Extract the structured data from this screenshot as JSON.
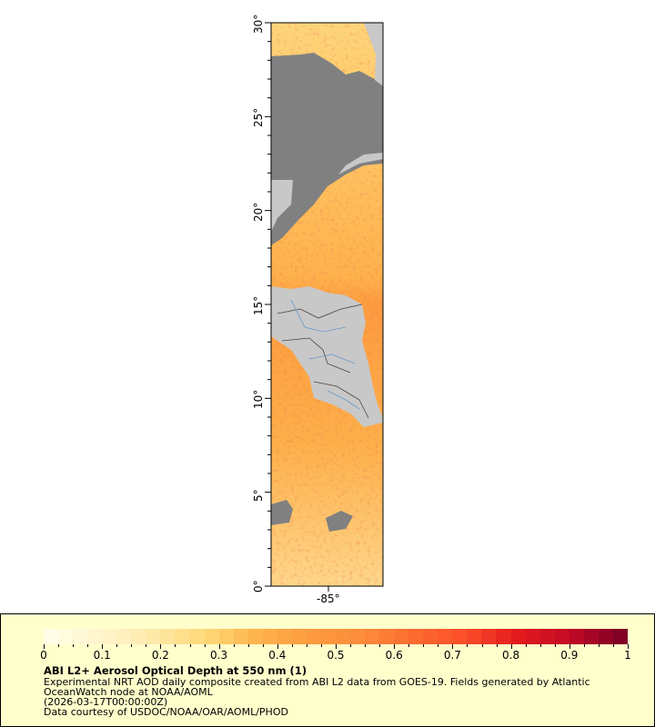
{
  "map": {
    "lat_labels": [
      "30°",
      "25°",
      "20°",
      "15°",
      "10°",
      "5°",
      "0°"
    ],
    "lon_labels": [
      "-85°"
    ],
    "lat_range": [
      0,
      30
    ],
    "lon_center": -85,
    "land_color": "#c8c8c8",
    "nodata_color": "#808080",
    "river_color": "#6699cc"
  },
  "legend": {
    "ticks": [
      "0",
      "0.1",
      "0.2",
      "0.3",
      "0.4",
      "0.5",
      "0.6",
      "0.7",
      "0.8",
      "0.9",
      "1"
    ],
    "range": [
      0,
      1
    ],
    "colors": [
      "#fffde6",
      "#fff5cc",
      "#fee9a8",
      "#fed976",
      "#feb24c",
      "#fd9b3f",
      "#fd8d3c",
      "#fc6c30",
      "#fc4e2a",
      "#e31a1c",
      "#c30a25",
      "#800026"
    ],
    "title": "ABI L2+ Aerosol Optical Depth at 550 nm (1)",
    "line1": "Experimental NRT AOD daily composite created from ABI L2 data from GOES-19. Fields generated by Atlantic",
    "line2": "OceanWatch node at NOAA/AOML",
    "time": "(2026-03-17T00:00:00Z)",
    "credit": "Data courtesy of USDOC/NOAA/OAR/AOML/PHOD"
  }
}
